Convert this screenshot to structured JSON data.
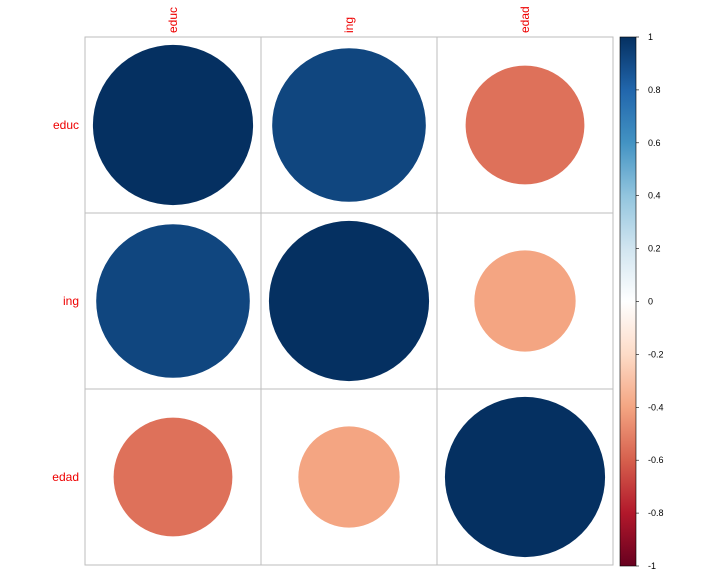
{
  "chart_data": {
    "type": "heatmap",
    "variables": [
      "educ",
      "ing",
      "edad"
    ],
    "matrix": [
      [
        1.0,
        0.92,
        -0.55
      ],
      [
        0.92,
        1.0,
        -0.4
      ],
      [
        -0.55,
        -0.4,
        1.0
      ]
    ],
    "method": "circle",
    "colorbar": {
      "range": [
        -1,
        1
      ],
      "ticks": [
        "1",
        "0.8",
        "0.6",
        "0.4",
        "0.2",
        "0",
        "-0.2",
        "-0.4",
        "-0.6",
        "-0.8",
        "-1"
      ]
    },
    "colors": {
      "label": "#ee0000",
      "grid": "#bebebe",
      "palette": [
        "#67001F",
        "#B2182B",
        "#D6604D",
        "#F4A582",
        "#FDDBC7",
        "#FFFFFF",
        "#D1E5F0",
        "#92C5DE",
        "#4393C3",
        "#2166AC",
        "#053061"
      ]
    }
  }
}
